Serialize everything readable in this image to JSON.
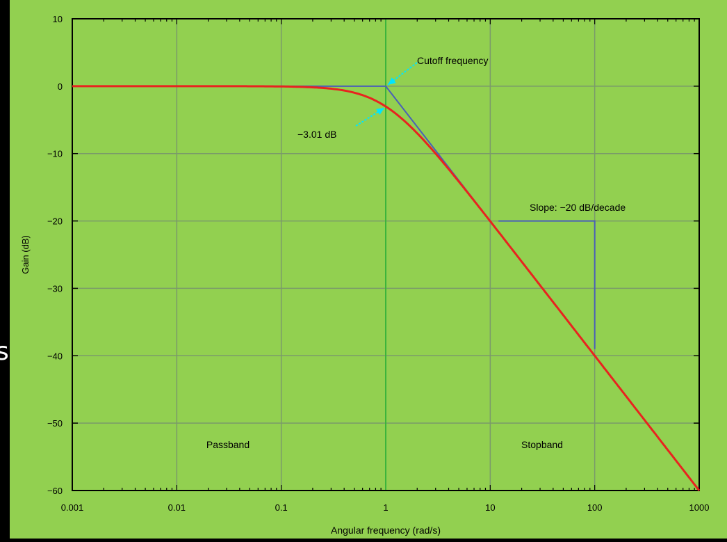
{
  "edge_glyph": "s",
  "colors": {
    "background": "#92d050",
    "grid": "#7a9a6a",
    "axis": "#000000",
    "red_curve": "#e8231f",
    "asymptote": "#4a5fb8",
    "cutoff_line": "#3cb43c",
    "annotation_arrow": "#00e5ff"
  },
  "chart_data": {
    "type": "line",
    "title": "",
    "xlabel": "Angular frequency (rad/s)",
    "ylabel": "Gain (dB)",
    "x_scale": "log",
    "xlim": [
      0.001,
      1000
    ],
    "ylim": [
      -60,
      10
    ],
    "grid": true,
    "x_ticks": [
      {
        "value": 0.001,
        "label": "0.001"
      },
      {
        "value": 0.01,
        "label": "0.01"
      },
      {
        "value": 0.1,
        "label": "0.1"
      },
      {
        "value": 1,
        "label": "1"
      },
      {
        "value": 10,
        "label": "10"
      },
      {
        "value": 100,
        "label": "100"
      },
      {
        "value": 1000,
        "label": "1000"
      }
    ],
    "y_ticks": [
      {
        "value": 10,
        "label": "10"
      },
      {
        "value": 0,
        "label": "0"
      },
      {
        "value": -10,
        "label": "−10"
      },
      {
        "value": -20,
        "label": "−20"
      },
      {
        "value": -30,
        "label": "−30"
      },
      {
        "value": -40,
        "label": "−40"
      },
      {
        "value": -50,
        "label": "−50"
      },
      {
        "value": -60,
        "label": "−60"
      }
    ],
    "series": [
      {
        "role": "gain_curve",
        "color": "#e8231f",
        "formula": "gain = -10*log10(1 + x^2)",
        "x": [
          0.001,
          0.01,
          0.1,
          0.3,
          0.5,
          1,
          2,
          3,
          5,
          10,
          100,
          1000
        ],
        "y": [
          0,
          0,
          -0.04,
          -0.37,
          -0.97,
          -3.01,
          -6.99,
          -10,
          -14.15,
          -20.04,
          -40,
          -60
        ]
      },
      {
        "role": "asymptote",
        "color": "#4a5fb8",
        "x": [
          0.001,
          1,
          1000
        ],
        "y": [
          0,
          0,
          -60
        ]
      }
    ],
    "slope_marker": {
      "x": [
        12,
        100,
        100
      ],
      "y": [
        -20,
        -20,
        -39
      ]
    },
    "cutoff_frequency": 1,
    "annotations": {
      "cutoff": {
        "text": "Cutoff frequency",
        "point": [
          1,
          0
        ]
      },
      "minus3db": {
        "text": "−3.01 dB",
        "point": [
          1,
          -3.01
        ]
      },
      "slope": {
        "text": "Slope: −20 dB/decade"
      },
      "passband": {
        "text": "Passband",
        "x": 0.05,
        "y": -53
      },
      "stopband": {
        "text": "Stopband",
        "x": 50,
        "y": -53
      }
    }
  }
}
